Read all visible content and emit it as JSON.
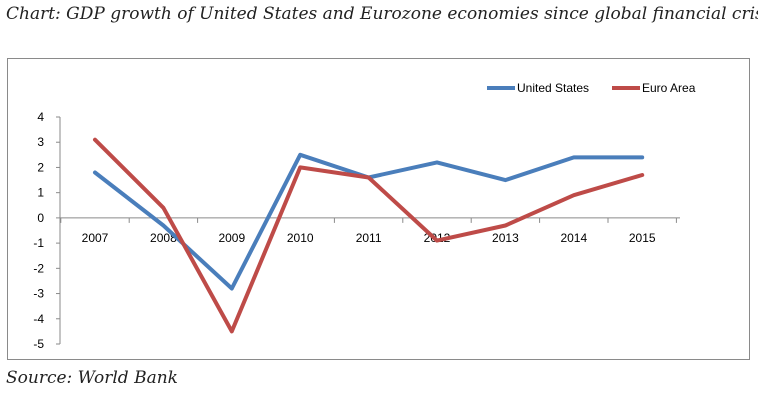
{
  "title": "Chart: GDP growth of United States and Eurozone economies since global financial crisis",
  "source": "Source: World Bank",
  "chart_data": {
    "type": "line",
    "title": "",
    "xlabel": "",
    "ylabel": "",
    "x": [
      "2007",
      "2008",
      "2009",
      "2010",
      "2011",
      "2012",
      "2013",
      "2014",
      "2015"
    ],
    "ylim": [
      -5,
      4
    ],
    "yticks": [
      4,
      3,
      2,
      1,
      0,
      -1,
      -2,
      -3,
      -4,
      -5
    ],
    "grid": false,
    "legend_position": "top-right",
    "series": [
      {
        "name": "United States",
        "color": "#4a7ebb",
        "values": [
          1.8,
          -0.3,
          -2.8,
          2.5,
          1.6,
          2.2,
          1.5,
          2.4,
          2.4
        ]
      },
      {
        "name": "Euro Area",
        "color": "#be4b48",
        "values": [
          3.1,
          0.4,
          -4.5,
          2.0,
          1.6,
          -0.9,
          -0.3,
          0.9,
          1.7
        ]
      }
    ]
  }
}
